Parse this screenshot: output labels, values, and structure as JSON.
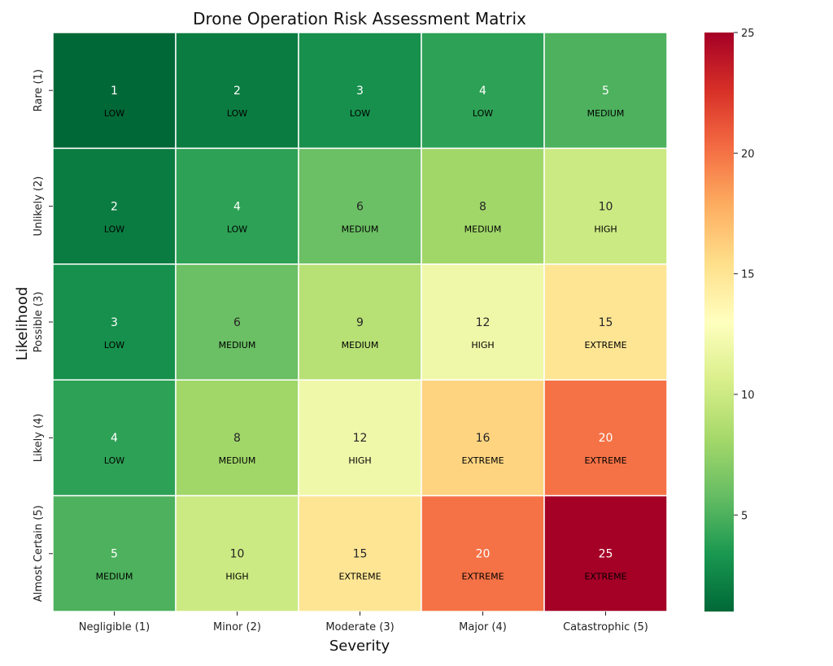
{
  "chart_data": {
    "type": "heatmap",
    "title": "Drone Operation Risk Assessment Matrix",
    "xlabel": "Severity",
    "ylabel": "Likelihood",
    "x_categories": [
      "Negligible (1)",
      "Minor (2)",
      "Moderate (3)",
      "Major (4)",
      "Catastrophic (5)"
    ],
    "y_categories": [
      "Rare (1)",
      "Unlikely (2)",
      "Possible (3)",
      "Likely (4)",
      "Almost Certain (5)"
    ],
    "values": [
      [
        1,
        2,
        3,
        4,
        5
      ],
      [
        2,
        4,
        6,
        8,
        10
      ],
      [
        3,
        6,
        9,
        12,
        15
      ],
      [
        4,
        8,
        12,
        16,
        20
      ],
      [
        5,
        10,
        15,
        20,
        25
      ]
    ],
    "levels": [
      [
        "LOW",
        "LOW",
        "LOW",
        "LOW",
        "MEDIUM"
      ],
      [
        "LOW",
        "LOW",
        "MEDIUM",
        "MEDIUM",
        "HIGH"
      ],
      [
        "LOW",
        "MEDIUM",
        "MEDIUM",
        "HIGH",
        "EXTREME"
      ],
      [
        "LOW",
        "MEDIUM",
        "HIGH",
        "EXTREME",
        "EXTREME"
      ],
      [
        "MEDIUM",
        "HIGH",
        "EXTREME",
        "EXTREME",
        "EXTREME"
      ]
    ],
    "colorbar": {
      "min": 1,
      "max": 25,
      "ticks": [
        5,
        10,
        15,
        20,
        25
      ],
      "colormap": "RdYlGn_r"
    }
  }
}
